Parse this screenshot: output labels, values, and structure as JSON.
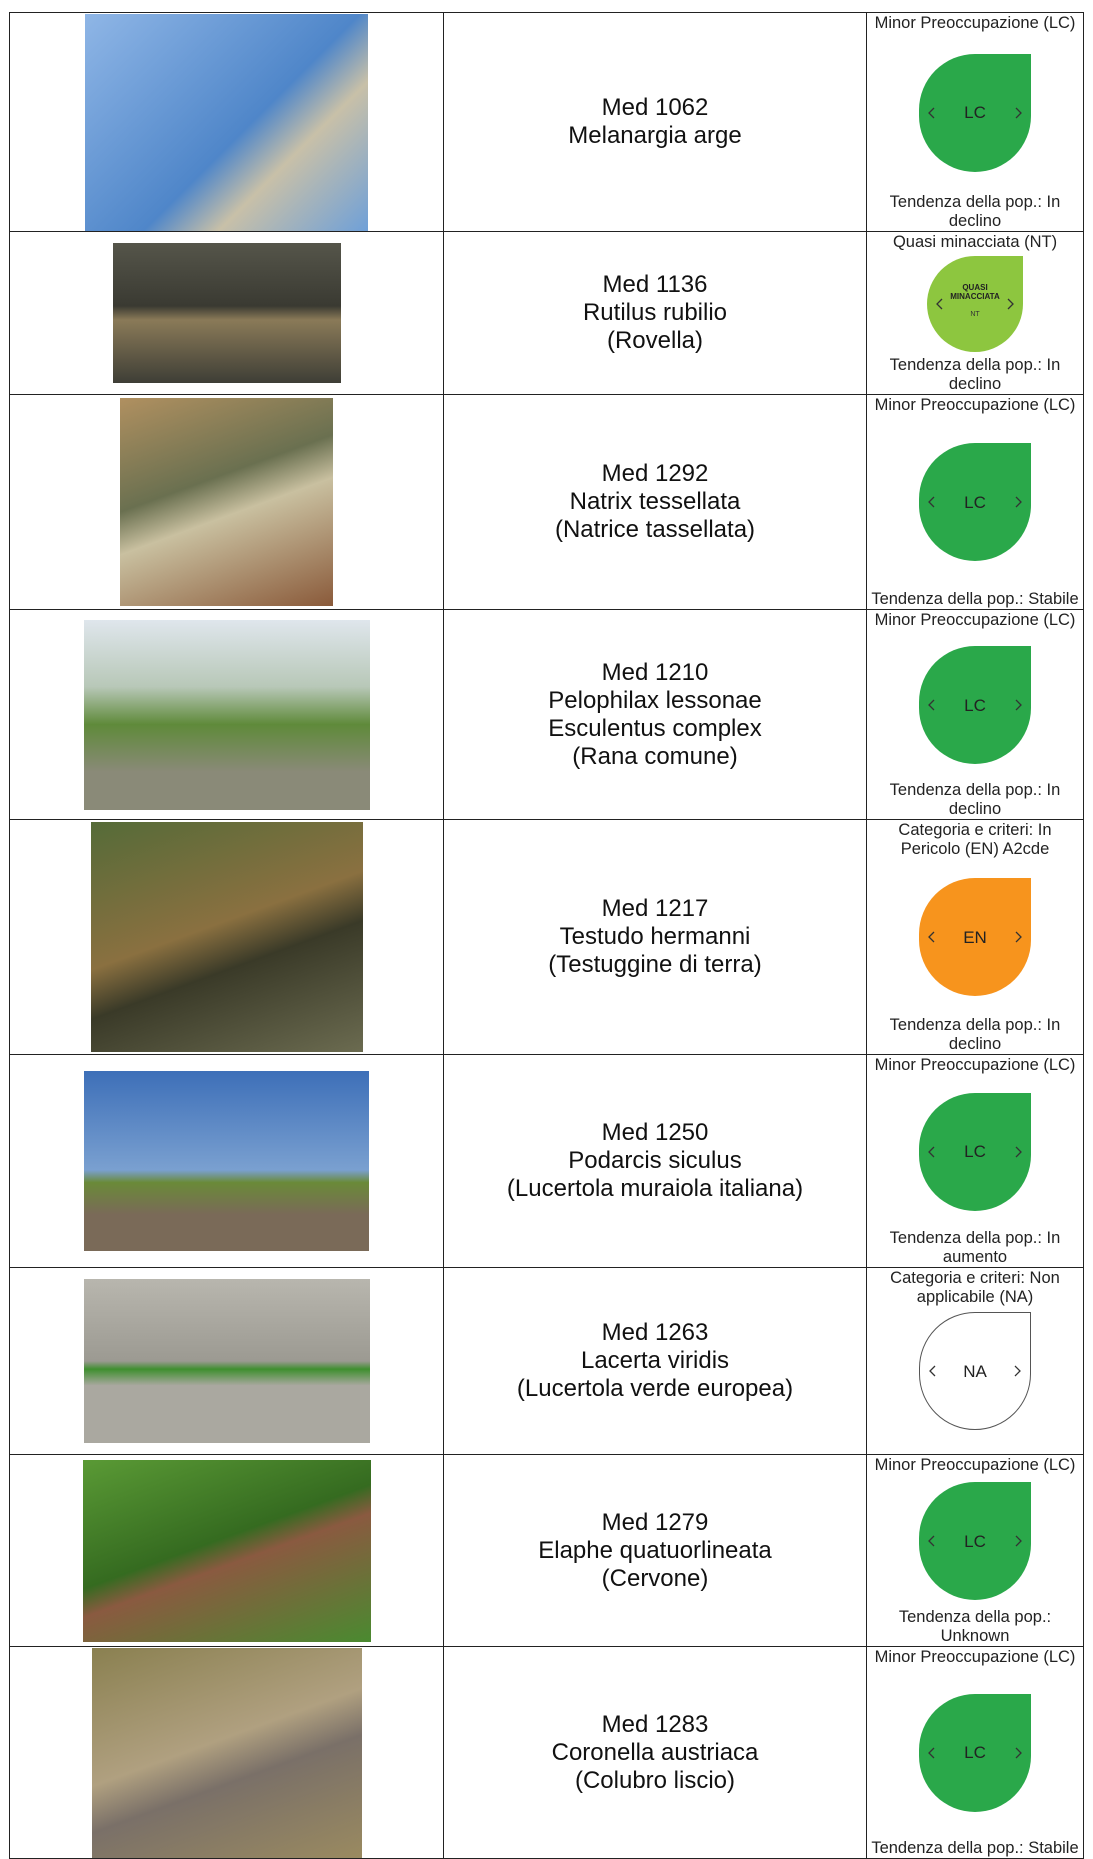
{
  "table": {
    "rows": [
      {
        "name": [
          "Med 1062",
          "Melanargia arge"
        ],
        "status": "Minor Preoccupazione (LC)",
        "badge": [
          "LC"
        ],
        "trend": "Tendenza della pop.: In declino"
      },
      {
        "name": [
          "Med 1136",
          "Rutilus rubilio",
          "(Rovella)"
        ],
        "status": "Quasi minacciata (NT)",
        "badge": [
          "QUASI MINACCIATA",
          "NT"
        ],
        "trend": "Tendenza della pop.: In declino"
      },
      {
        "name": [
          "Med 1292",
          "Natrix tessellata",
          "(Natrice tassellata)"
        ],
        "status": "Minor Preoccupazione (LC)",
        "badge": [
          "LC"
        ],
        "trend": "Tendenza della pop.: Stabile"
      },
      {
        "name": [
          "Med 1210",
          "Pelophilax lessonae",
          "Esculentus complex",
          "(Rana comune)"
        ],
        "status": "Minor Preoccupazione (LC)",
        "badge": [
          "LC"
        ],
        "trend": "Tendenza della pop.: In declino"
      },
      {
        "name": [
          "Med 1217",
          "Testudo hermanni",
          "(Testuggine di terra)"
        ],
        "status": "Categoria e criteri: In Pericolo (EN) A2cde",
        "badge": [
          "EN"
        ],
        "trend": "Tendenza della pop.: In declino"
      },
      {
        "name": [
          "Med 1250",
          "Podarcis siculus",
          "(Lucertola muraiola italiana)"
        ],
        "status": "Minor Preoccupazione (LC)",
        "badge": [
          "LC"
        ],
        "trend": "Tendenza della pop.: In aumento"
      },
      {
        "name": [
          "Med 1263",
          "Lacerta viridis",
          "(Lucertola verde europea)"
        ],
        "status": "Categoria e criteri: Non applicabile (NA)",
        "badge": [
          "NA"
        ],
        "trend": null
      },
      {
        "name": [
          "Med 1279",
          "Elaphe quatuorlineata",
          "(Cervone)"
        ],
        "status": "Minor Preoccupazione (LC)",
        "badge": [
          "LC"
        ],
        "trend": "Tendenza della pop.: Unknown"
      },
      {
        "name": [
          "Med 1283",
          "Coronella austriaca",
          "(Colubro liscio)"
        ],
        "status": "Minor Preoccupazione (LC)",
        "badge": [
          "LC"
        ],
        "trend": "Tendenza della pop.: Stabile"
      }
    ]
  }
}
